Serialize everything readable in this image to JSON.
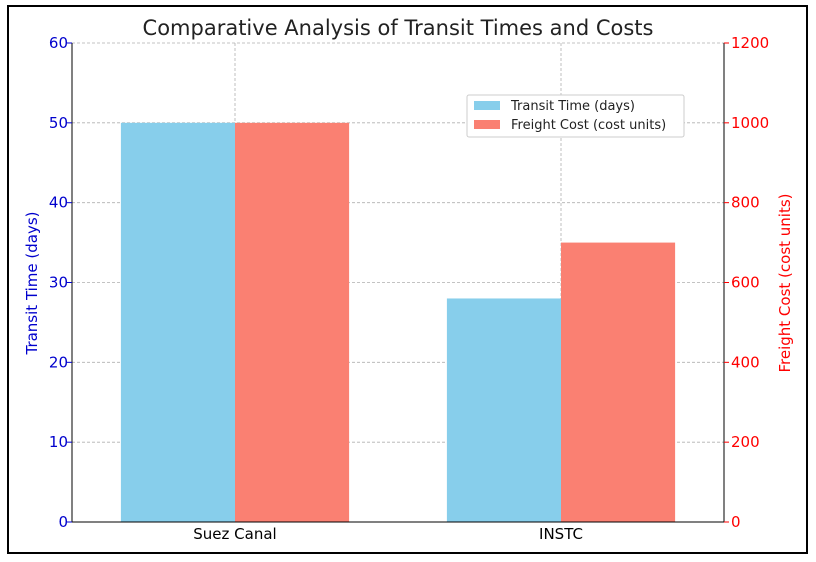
{
  "chart_data": {
    "type": "bar",
    "title": "Comparative Analysis of Transit Times and Costs",
    "categories": [
      "Suez Canal",
      "INSTC"
    ],
    "series": [
      {
        "name": "Transit Time (days)",
        "axis": "left",
        "values": [
          50,
          28
        ],
        "color": "#87ceeb"
      },
      {
        "name": "Freight Cost (cost units)",
        "axis": "right",
        "values": [
          1000,
          700
        ],
        "color": "#fa8072"
      }
    ],
    "y_left": {
      "label": "Transit Time (days)",
      "range": [
        0,
        60
      ],
      "ticks": [
        "0",
        "10",
        "20",
        "30",
        "40",
        "50",
        "60"
      ],
      "color": "#0000cd"
    },
    "y_right": {
      "label": "Freight Cost (cost units)",
      "range": [
        0,
        1200
      ],
      "ticks": [
        "0",
        "200",
        "400",
        "600",
        "800",
        "1000",
        "1200"
      ],
      "color": "#ff0000"
    },
    "grid": true,
    "legend_position": "top-right"
  }
}
